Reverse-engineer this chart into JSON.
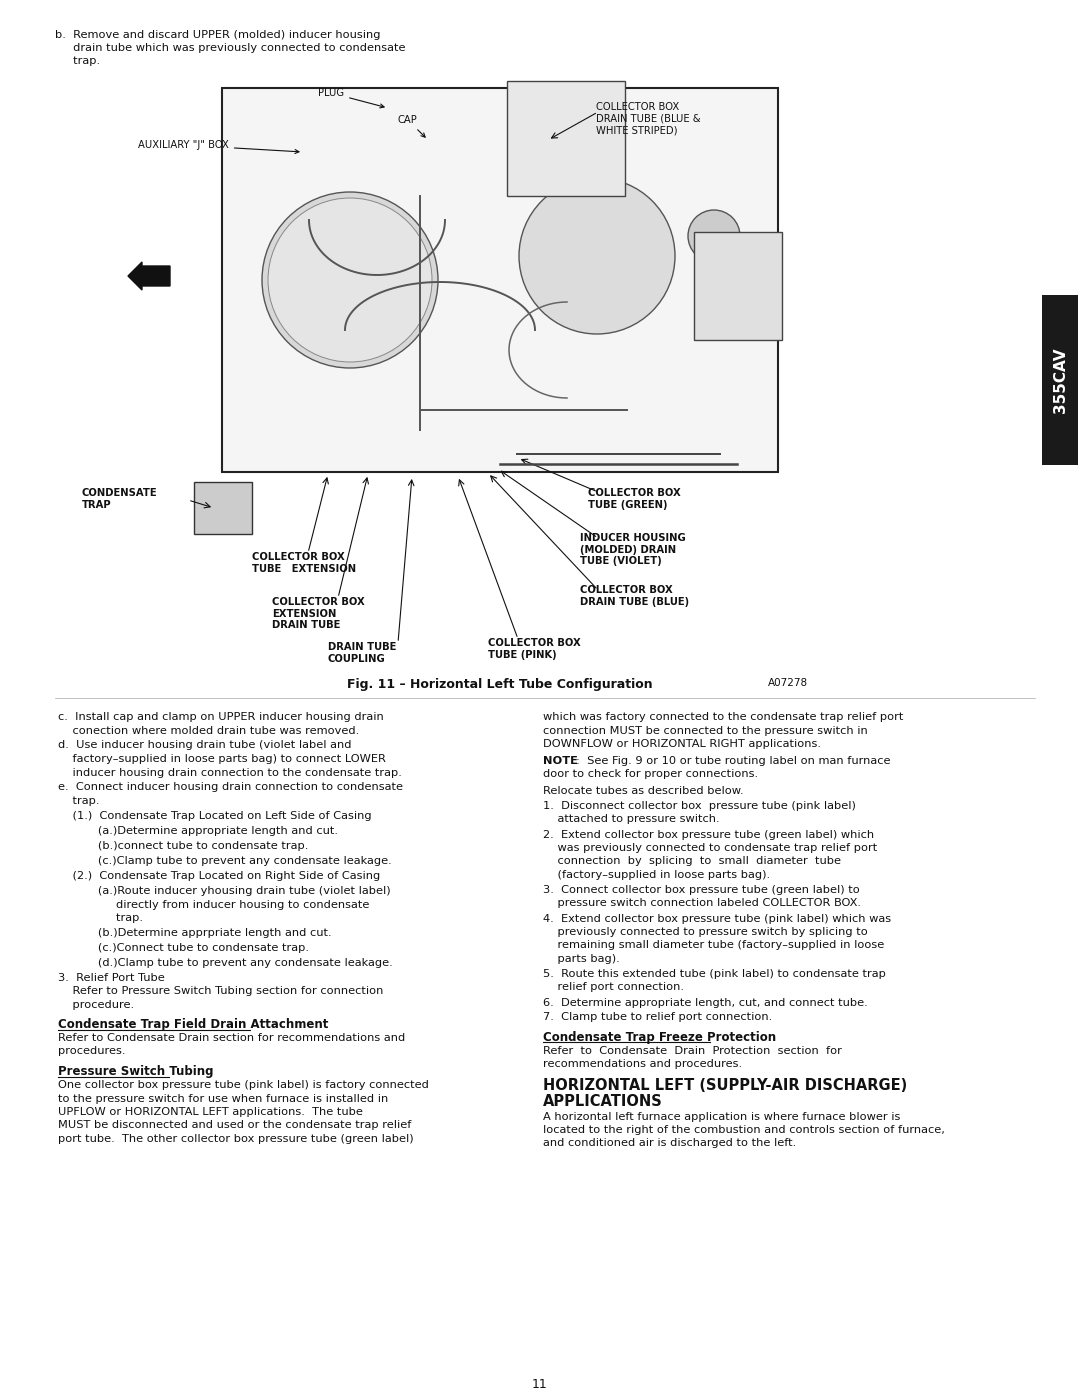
{
  "page_width": 10.8,
  "page_height": 13.97,
  "bg_color": "#ffffff",
  "sidebar_color": "#1a1a1a",
  "sidebar_text": "355CAV",
  "sidebar_text_color": "#ffffff",
  "fig_caption": "Fig. 11 – Horizontal Left Tube Configuration",
  "fig_note": "A07278",
  "page_number": "11",
  "top_text_b": "b.  Remove and discard UPPER (molded) inducer housing\n     drain tube which was previously connected to condensate\n     trap.",
  "left_col_items": [
    "c.  Install cap and clamp on UPPER inducer housing drain\n    conection where molded drain tube was removed.",
    "d.  Use inducer housing drain tube (violet label and\n    factory–supplied in loose parts bag) to connect LOWER\n    inducer housing drain connection to the condensate trap.",
    "e.  Connect inducer housing drain connection to condensate\n    trap.",
    "    (1.)  Condensate Trap Located on Left Side of Casing",
    "           (a.)Determine appropriate length and cut.",
    "           (b.)connect tube to condensate trap.",
    "           (c.)Clamp tube to prevent any condensate leakage.",
    "    (2.)  Condensate Trap Located on Right Side of Casing",
    "           (a.)Route inducer yhousing drain tube (violet label)\n                directly from inducer housing to condensate\n                trap.",
    "           (b.)Determine apprpriate length and cut.",
    "           (c.)Connect tube to condensate trap.",
    "           (d.)Clamp tube to prevent any condensate leakage.",
    "3.  Relief Port Tube\n    Refer to Pressure Switch Tubing section for connection\n    procedure."
  ],
  "left_col_section2_title": "Condensate Trap Field Drain Attachment",
  "left_col_section2_body": "Refer to Condensate Drain section for recommendations and\nprocedures.",
  "left_col_section3_title": "Pressure Switch Tubing",
  "left_col_section3_body": "One collector box pressure tube (pink label) is factory connected\nto the pressure switch for use when furnace is installed in\nUPFLOW or HORIZONTAL LEFT applications.  The tube\nMUST be disconnected and used or the condensate trap relief\nport tube.  The other collector box pressure tube (green label)",
  "right_col_body1": "which was factory connected to the condensate trap relief port\nconnection MUST be connected to the pressure switch in\nDOWNFLOW or HORIZONTAL RIGHT applications.",
  "right_col_note": "NOTE:  See Fig. 9 or 10 or tube routing label on man furnace\ndoor to check for proper connections.",
  "right_col_relocate": "Relocate tubes as described below.",
  "right_col_steps": [
    "1.  Disconnect collector box  pressure tube (pink label)\n    attached to pressure switch.",
    "2.  Extend collector box pressure tube (green label) which\n    was previously connected to condensate trap relief port\n    connection  by  splicing  to  small  diameter  tube\n    (factory–supplied in loose parts bag).",
    "3.  Connect collector box pressure tube (green label) to\n    pressure switch connection labeled COLLECTOR BOX.",
    "4.  Extend collector box pressure tube (pink label) which was\n    previously connected to pressure switch by splicing to\n    remaining small diameter tube (factory–supplied in loose\n    parts bag).",
    "5.  Route this extended tube (pink label) to condensate trap\n    relief port connection.",
    "6.  Determine appropriate length, cut, and connect tube.",
    "7.  Clamp tube to relief port connection."
  ],
  "right_col_section2_title": "Condensate Trap Freeze Protection",
  "right_col_section2_body": "Refer  to  Condensate  Drain  Protection  section  for\nrecommendations and procedures.",
  "right_col_section3_title": "HORIZONTAL LEFT (SUPPLY-AIR DISCHARGE)\nAPPLICATIONS",
  "right_col_section3_body": "A horizontal left furnace application is where furnace blower is\nlocated to the right of the combustion and controls section of furnace,\nand conditioned air is discharged to the left."
}
